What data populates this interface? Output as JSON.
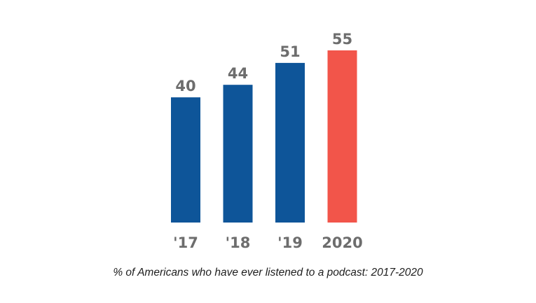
{
  "chart_data": {
    "type": "bar",
    "categories": [
      "'17",
      "'18",
      "'19",
      "2020"
    ],
    "values": [
      40,
      44,
      51,
      55
    ],
    "colors": [
      "#0e5599",
      "#0e5599",
      "#0e5599",
      "#f2554a"
    ],
    "label_color": "#6d6d6d",
    "title": "% of Americans who have ever listened to a podcast: 2017-2020",
    "xlabel": "",
    "ylabel": "",
    "ylim": [
      0,
      55
    ],
    "grid": false,
    "legend": "none",
    "show_value_labels": true
  }
}
